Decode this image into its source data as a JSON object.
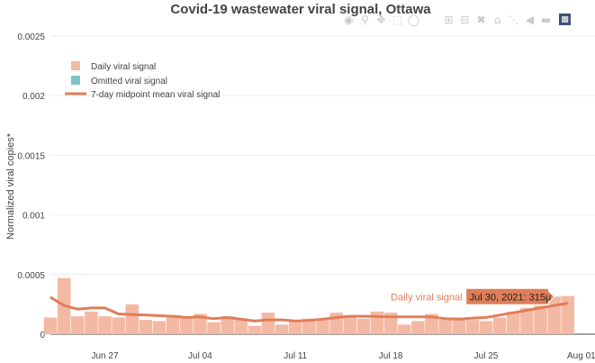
{
  "chart_data": {
    "type": "bar",
    "title": "Covid-19 wastewater viral signal, Ottawa",
    "ylabel": "Normalized viral copies*",
    "xlabel": "",
    "x_range": [
      "2021-06-23",
      "2021-08-02"
    ],
    "ylim": [
      0,
      0.0025
    ],
    "y_ticks": [
      0,
      0.0005,
      0.001,
      0.0015,
      0.002,
      0.0025
    ],
    "y_tick_labels": [
      "0",
      "0.0005",
      "0.001",
      "0.0015",
      "0.002",
      "0.0025"
    ],
    "x_ticks": [
      "2021-06-27",
      "2021-07-04",
      "2021-07-11",
      "2021-07-18",
      "2021-07-25",
      "2021-08-01"
    ],
    "x_tick_labels": [
      "Jun 27",
      "Jul 04",
      "Jul 11",
      "Jul 18",
      "Jul 25",
      "Aug 01"
    ],
    "grid": true,
    "legend_position": "top-left",
    "series": [
      {
        "name": "Daily viral signal",
        "kind": "bar",
        "color": "#f4b9a2",
        "x": [
          "2021-06-23",
          "2021-06-24",
          "2021-06-25",
          "2021-06-26",
          "2021-06-27",
          "2021-06-28",
          "2021-06-29",
          "2021-06-30",
          "2021-07-01",
          "2021-07-02",
          "2021-07-03",
          "2021-07-04",
          "2021-07-05",
          "2021-07-06",
          "2021-07-07",
          "2021-07-08",
          "2021-07-09",
          "2021-07-10",
          "2021-07-11",
          "2021-07-12",
          "2021-07-13",
          "2021-07-14",
          "2021-07-15",
          "2021-07-16",
          "2021-07-17",
          "2021-07-18",
          "2021-07-19",
          "2021-07-20",
          "2021-07-21",
          "2021-07-22",
          "2021-07-23",
          "2021-07-24",
          "2021-07-25",
          "2021-07-26",
          "2021-07-27",
          "2021-07-28",
          "2021-07-29",
          "2021-07-30",
          "2021-07-31"
        ],
        "y": [
          0.00014,
          0.00047,
          0.00015,
          0.00019,
          0.00015,
          0.00014,
          0.00025,
          0.00012,
          0.00011,
          0.00016,
          0.00015,
          0.00017,
          0.0001,
          0.00015,
          0.00013,
          7e-05,
          0.00018,
          8e-05,
          0.00011,
          0.00013,
          0.00012,
          0.00018,
          0.00016,
          0.00013,
          0.00019,
          0.00018,
          8e-05,
          0.00011,
          0.00017,
          0.00012,
          0.00014,
          0.00012,
          0.00011,
          0.00014,
          0.00019,
          0.00022,
          0.00024,
          0.000315,
          0.00032
        ]
      },
      {
        "name": "Omitted viral signal",
        "kind": "bar",
        "color": "#7fc4c4",
        "x": [],
        "y": []
      },
      {
        "name": "7-day midpoint mean viral signal",
        "kind": "line",
        "color": "#e07e5a",
        "x": [
          "2021-06-23",
          "2021-06-24",
          "2021-06-25",
          "2021-06-26",
          "2021-06-27",
          "2021-06-28",
          "2021-06-29",
          "2021-06-30",
          "2021-07-01",
          "2021-07-02",
          "2021-07-03",
          "2021-07-04",
          "2021-07-05",
          "2021-07-06",
          "2021-07-07",
          "2021-07-08",
          "2021-07-09",
          "2021-07-10",
          "2021-07-11",
          "2021-07-12",
          "2021-07-13",
          "2021-07-14",
          "2021-07-15",
          "2021-07-16",
          "2021-07-17",
          "2021-07-18",
          "2021-07-19",
          "2021-07-20",
          "2021-07-21",
          "2021-07-22",
          "2021-07-23",
          "2021-07-24",
          "2021-07-25",
          "2021-07-26",
          "2021-07-27",
          "2021-07-28",
          "2021-07-29",
          "2021-07-30",
          "2021-07-31"
        ],
        "y": [
          0.00031,
          0.00024,
          0.00021,
          0.00022,
          0.00022,
          0.00017,
          0.000165,
          0.00016,
          0.000155,
          0.00015,
          0.00014,
          0.000145,
          0.00013,
          0.00014,
          0.000125,
          0.00011,
          0.00012,
          0.00012,
          0.00011,
          0.000115,
          0.000125,
          0.00014,
          0.00015,
          0.00015,
          0.000148,
          0.000145,
          0.000145,
          0.000145,
          0.000145,
          0.00013,
          0.000125,
          0.000135,
          0.00014,
          0.00016,
          0.00018,
          0.0002,
          0.00022,
          0.00024,
          0.00026
        ]
      }
    ],
    "hover": {
      "series_name": "Daily viral signal",
      "text": "Jul 30, 2021: 315μ",
      "x": "2021-07-30",
      "y": 0.000315
    }
  },
  "modebar": {
    "icons": [
      "camera-icon",
      "zoom-icon",
      "pan-icon",
      "box-select-icon",
      "lasso-select-icon",
      "zoom-in-icon",
      "zoom-out-icon",
      "autoscale-icon",
      "reset-axes-icon",
      "spike-lines-icon",
      "hover-closest-icon",
      "hover-compare-icon",
      "plotly-logo-icon"
    ]
  }
}
